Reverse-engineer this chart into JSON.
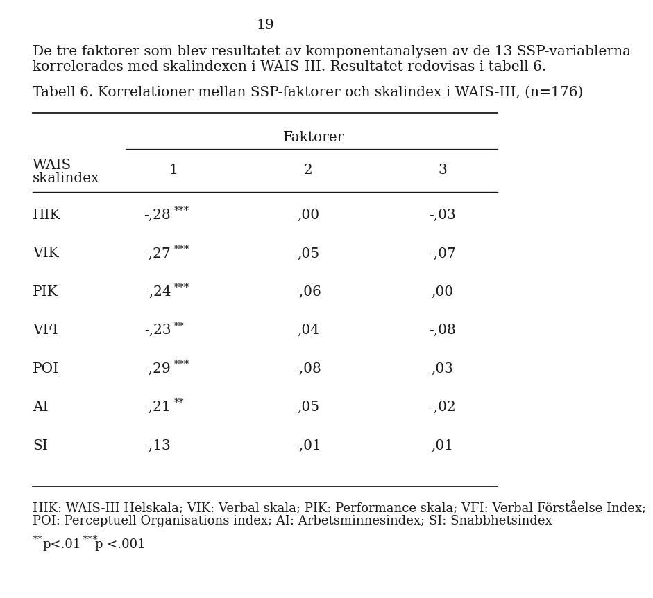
{
  "page_number": "19",
  "intro_text_line1": "De tre faktorer som blev resultatet av komponentanalysen av de 13 SSP-variablerna",
  "intro_text_line2": "korrelerades med skalindexen i WAIS-III. Resultatet redovisas i tabell 6.",
  "table_title": "Tabell 6. Korrelationer mellan SSP-faktorer och skalindex i WAIS-III, (n=176)",
  "faktorer_header": "Faktorer",
  "col_headers": [
    "1",
    "2",
    "3"
  ],
  "row_label_header_line1": "WAIS",
  "row_label_header_line2": "skalindex",
  "rows": [
    {
      "label": "HIK",
      "col1": "-,28",
      "sig1": "***",
      "col2": ",00",
      "col3": "-,03"
    },
    {
      "label": "VIK",
      "col1": "-,27",
      "sig1": "***",
      "col2": ",05",
      "col3": "-,07"
    },
    {
      "label": "PIK",
      "col1": "-,24",
      "sig1": "***",
      "col2": "-,06",
      "col3": ",00"
    },
    {
      "label": "VFI",
      "col1": "-,23",
      "sig1": "**",
      "col2": ",04",
      "col3": "-,08"
    },
    {
      "label": "POI",
      "col1": "-,29",
      "sig1": "***",
      "col2": "-,08",
      "col3": ",03"
    },
    {
      "label": "AI",
      "col1": "-,21",
      "sig1": "**",
      "col2": ",05",
      "col3": "-,02"
    },
    {
      "label": "SI",
      "col1": "-,13",
      "sig1": "",
      "col2": "-,01",
      "col3": ",01"
    }
  ],
  "footnote_line1": "HIK: WAIS-III Helskala; VIK: Verbal skala; PIK: Performance skala; VFI: Verbal Förståelse Index;",
  "footnote_line2": "POI: Perceptuell Organisations index; AI: Arbetsminnesindex; SI: Snabbhetsindex",
  "bg_color": "#ffffff",
  "text_color": "#1a1a1a",
  "main_fontsize": 14.5,
  "header_fontsize": 14.5,
  "data_fontsize": 14.5,
  "footnote_fontsize": 13.0,
  "sig_fontsize": 10.5,
  "page_num_fontsize": 14.5
}
